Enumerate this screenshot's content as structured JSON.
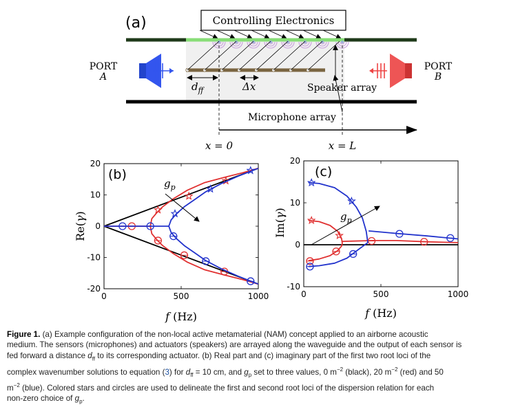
{
  "panel_a": {
    "label": "(a)",
    "electronics": "Controlling Electronics",
    "port_a": {
      "line1": "PORT",
      "line2": "A"
    },
    "port_b": {
      "line1": "PORT",
      "line2": "B"
    },
    "dff_base": "d",
    "dff_sub": "ff",
    "dx": "Δx",
    "speaker_array": "Speaker array",
    "microphone_array": "Microphone array",
    "x0": "x = 0",
    "xL": "x = L",
    "colors": {
      "blue": "#3355ee",
      "red": "#ee4444",
      "speaker_top": "#88dd77",
      "mic_bar": "#7a6541",
      "waveguide": "#f0f0f0",
      "lavender": "#c9a0dc"
    }
  },
  "chart_data": [
    {
      "type": "line",
      "panel_label": "(b)",
      "annotation": "g_p",
      "xlabel": "f (Hz)",
      "ylabel": "Re(γ)",
      "xlim": [
        0,
        1000
      ],
      "ylim": [
        -20,
        20
      ],
      "xticks": [
        "0",
        "500",
        "1000"
      ],
      "yticks": [
        "20",
        "10",
        "0",
        "-10",
        "-20"
      ],
      "series": [
        {
          "color": "black",
          "segments": [
            [
              [
                0,
                0
              ],
              [
                1000,
                18.5
              ]
            ],
            [
              [
                0,
                0
              ],
              [
                1000,
                -18.5
              ]
            ]
          ]
        },
        {
          "color": "red",
          "segments": [
            [
              [
                0,
                0
              ],
              [
                300,
                0
              ]
            ],
            [
              [
                300,
                0
              ],
              [
                310,
                2.4
              ],
              [
                340,
                4.2
              ],
              [
                380,
                6.2
              ],
              [
                450,
                8.8
              ],
              [
                540,
                11.5
              ],
              [
                650,
                13.9
              ],
              [
                780,
                15.6
              ],
              [
                900,
                17.1
              ],
              [
                1000,
                18.5
              ]
            ],
            [
              [
                300,
                0
              ],
              [
                310,
                -2.4
              ],
              [
                340,
                -4.2
              ],
              [
                380,
                -6.2
              ],
              [
                450,
                -8.8
              ],
              [
                540,
                -11.5
              ],
              [
                650,
                -13.9
              ],
              [
                780,
                -15.6
              ],
              [
                900,
                -17.1
              ],
              [
                1000,
                -18.5
              ]
            ]
          ],
          "stars": [
            [
              350,
              5.2
            ],
            [
              550,
              9.6
            ],
            [
              790,
              14.5
            ]
          ],
          "circles": [
            [
              180,
              0
            ],
            [
              350,
              -4.6
            ],
            [
              520,
              -9.3
            ],
            [
              780,
              -14.5
            ]
          ]
        },
        {
          "color": "blue",
          "segments": [
            [
              [
                0,
                0
              ],
              [
                420,
                0
              ]
            ],
            [
              [
                420,
                0
              ],
              [
                435,
                2.0
              ],
              [
                470,
                4.0
              ],
              [
                520,
                6.2
              ],
              [
                590,
                8.6
              ],
              [
                660,
                11.0
              ],
              [
                760,
                13.6
              ],
              [
                870,
                16.0
              ],
              [
                1000,
                18.5
              ]
            ],
            [
              [
                420,
                0
              ],
              [
                435,
                -2.0
              ],
              [
                470,
                -4.0
              ],
              [
                520,
                -6.2
              ],
              [
                590,
                -8.6
              ],
              [
                660,
                -11.0
              ],
              [
                760,
                -13.6
              ],
              [
                870,
                -16.0
              ],
              [
                1000,
                -18.5
              ]
            ]
          ],
          "stars": [
            [
              460,
              4.0
            ],
            [
              690,
              11.9
            ],
            [
              950,
              17.8
            ]
          ],
          "circles": [
            [
              120,
              0
            ],
            [
              300,
              0
            ],
            [
              450,
              -3.2
            ],
            [
              660,
              -11.2
            ],
            [
              950,
              -17.6
            ]
          ]
        }
      ]
    },
    {
      "type": "line",
      "panel_label": "(c)",
      "annotation": "g_p",
      "xlabel": "f (Hz)",
      "ylabel": "Im(γ)",
      "xlim": [
        0,
        1000
      ],
      "ylim": [
        -10,
        20
      ],
      "xticks": [
        "0",
        "500",
        "1000"
      ],
      "yticks": [
        "20",
        "10",
        "0",
        "-10"
      ],
      "series": [
        {
          "color": "black",
          "segments": [
            [
              [
                0,
                0
              ],
              [
                1000,
                0
              ]
            ]
          ]
        },
        {
          "color": "red",
          "segments": [
            [
              [
                30,
                5.8
              ],
              [
                100,
                5.5
              ],
              [
                170,
                4.6
              ],
              [
                220,
                3.2
              ],
              [
                245,
                1.5
              ],
              [
                250,
                0.3
              ]
            ],
            [
              [
                30,
                -3.8
              ],
              [
                100,
                -3.4
              ],
              [
                170,
                -2.6
              ],
              [
                220,
                -1.4
              ],
              [
                245,
                -0.3
              ],
              [
                250,
                0.3
              ]
            ],
            [
              [
                250,
                0.8
              ],
              [
                450,
                1.0
              ],
              [
                600,
                1.0
              ],
              [
                800,
                0.7
              ],
              [
                1000,
                0.5
              ]
            ]
          ],
          "stars": [
            [
              50,
              5.8
            ],
            [
              230,
              2.2
            ]
          ],
          "circles": [
            [
              40,
              -3.9
            ],
            [
              210,
              -1.6
            ],
            [
              440,
              0.9
            ],
            [
              780,
              0.7
            ]
          ]
        },
        {
          "color": "blue",
          "segments": [
            [
              [
                30,
                14.8
              ],
              [
                100,
                14.6
              ],
              [
                200,
                13.6
              ],
              [
                280,
                11.6
              ],
              [
                340,
                9.0
              ],
              [
                380,
                6.4
              ],
              [
                405,
                3.2
              ],
              [
                415,
                0.5
              ]
            ],
            [
              [
                30,
                -5.2
              ],
              [
                100,
                -5.0
              ],
              [
                200,
                -4.4
              ],
              [
                280,
                -3.2
              ],
              [
                330,
                -1.8
              ],
              [
                370,
                -0.7
              ],
              [
                415,
                0.5
              ]
            ],
            [
              [
                420,
                3.3
              ],
              [
                600,
                2.7
              ],
              [
                800,
                2.1
              ],
              [
                1000,
                1.4
              ]
            ]
          ],
          "stars": [
            [
              50,
              14.8
            ],
            [
              310,
              10.4
            ]
          ],
          "circles": [
            [
              40,
              -5.2
            ],
            [
              320,
              -2.2
            ],
            [
              620,
              2.6
            ],
            [
              950,
              1.6
            ]
          ]
        }
      ]
    }
  ],
  "caption": {
    "label": "Figure 1.",
    "line1": "(a) Example configuration of the non-local active metamaterial (NAM) concept applied to an airborne acoustic",
    "line2": "medium. The sensors (microphones) and actuators (speakers) are arrayed along the waveguide and the output of each sensor is",
    "line3a": "fed forward a distance ",
    "line3b": " to its corresponding actuator. (b) Real part and (c) imaginary part of the first two root loci of the",
    "line4a": "complex wavenumber solutions to equation (",
    "line4ref": "3",
    "line4b": ") for ",
    "line4c": " = 10 cm, and ",
    "line4d": " set to three values, 0 m",
    "line4e": " (black), 20 m",
    "line4f": " (red) and 50",
    "line5a": "m",
    "line5b": " (blue). Colored stars and circles are used to delineate the first and second root loci of the dispersion relation for each",
    "line6a": "non-zero choice of ",
    "line6b": ".",
    "d": "d",
    "ff": "ff",
    "g": "g",
    "p": "p",
    "sup": "−2"
  }
}
